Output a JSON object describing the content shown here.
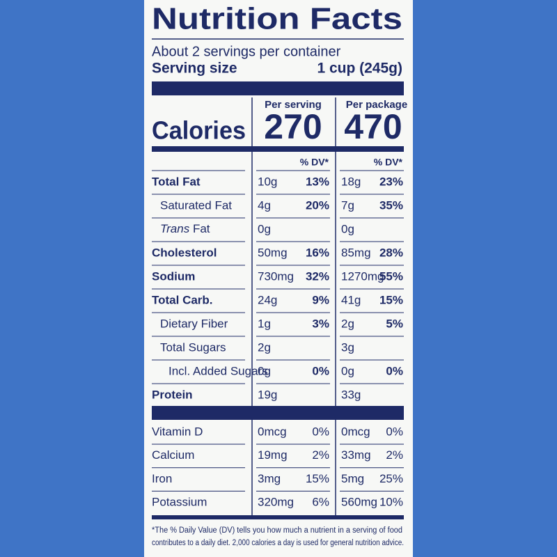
{
  "title": "Nutrition Facts",
  "servings": "About 2 servings per container",
  "serving_size": {
    "label": "Serving size",
    "value": "1 cup (245g)"
  },
  "columns": [
    "Per serving",
    "Per package"
  ],
  "calories": {
    "label": "Calories",
    "values": [
      "270",
      "470"
    ]
  },
  "dv_header": [
    "% DV*",
    "% DV*"
  ],
  "nutrients": [
    {
      "name": "Total Fat",
      "bold": true,
      "indent": 0,
      "serving": [
        "10g",
        "13%"
      ],
      "package": [
        "18g",
        "23%"
      ]
    },
    {
      "name": "Saturated Fat",
      "bold": false,
      "indent": 1,
      "serving": [
        "4g",
        "20%"
      ],
      "package": [
        "7g",
        "35%"
      ]
    },
    {
      "name_italic": "Trans",
      "name": "Fat",
      "bold": false,
      "indent": 1,
      "serving": [
        "0g"
      ],
      "package": [
        "0g"
      ]
    },
    {
      "name": "Cholesterol",
      "bold": true,
      "indent": 0,
      "serving": [
        "50mg",
        "16%"
      ],
      "package": [
        "85mg",
        "28%"
      ]
    },
    {
      "name": "Sodium",
      "bold": true,
      "indent": 0,
      "serving": [
        "730mg",
        "32%"
      ],
      "package": [
        "1270mg",
        "55%"
      ]
    },
    {
      "name": "Total Carb.",
      "bold": true,
      "indent": 0,
      "serving": [
        "24g",
        "9%"
      ],
      "package": [
        "41g",
        "15%"
      ]
    },
    {
      "name": "Dietary Fiber",
      "bold": false,
      "indent": 1,
      "serving": [
        "1g",
        "3%"
      ],
      "package": [
        "2g",
        "5%"
      ]
    },
    {
      "name": "Total Sugars",
      "bold": false,
      "indent": 1,
      "serving": [
        "2g"
      ],
      "package": [
        "3g"
      ]
    },
    {
      "name": "Incl. Added Sugars",
      "bold": false,
      "indent": 2,
      "serving": [
        "0g",
        "0%"
      ],
      "package": [
        "0g",
        "0%"
      ]
    },
    {
      "name": "Protein",
      "bold": true,
      "indent": 0,
      "serving": [
        "19g"
      ],
      "package": [
        "33g"
      ]
    }
  ],
  "vitamins": [
    {
      "name": "Vitamin D",
      "serving": [
        "0mcg",
        "0%"
      ],
      "package": [
        "0mcg",
        "0%"
      ]
    },
    {
      "name": "Calcium",
      "serving": [
        "19mg",
        "2%"
      ],
      "package": [
        "33mg",
        "2%"
      ]
    },
    {
      "name": "Iron",
      "serving": [
        "3mg",
        "15%"
      ],
      "package": [
        "5mg",
        "25%"
      ]
    },
    {
      "name": "Potassium",
      "serving": [
        "320mg",
        "6%"
      ],
      "package": [
        "560mg",
        "10%"
      ]
    }
  ],
  "footnote": [
    "*The % Daily Value (DV) tells you how much a nutrient in a serving of food",
    "contributes to a daily diet. 2,000 calories a day is used for general nutrition advice."
  ]
}
